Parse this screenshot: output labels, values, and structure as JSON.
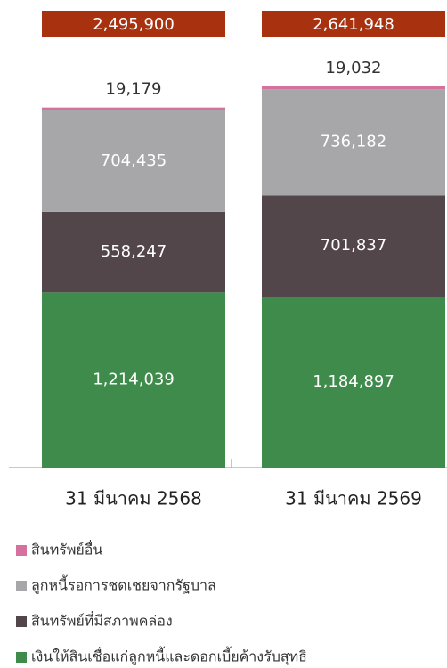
{
  "chart_data": {
    "type": "stacked-bar",
    "categories": [
      "31 มีนาคม 2568",
      "31 มีนาคม 2569"
    ],
    "totals": [
      2495900,
      2641948
    ],
    "total_labels": [
      "2,495,900",
      "2,641,948"
    ],
    "total_color": "#a8320f",
    "series": [
      {
        "name": "สินทรัพย์อื่น",
        "color": "#d4719c",
        "values": [
          19179,
          19032
        ],
        "value_labels": [
          "19,179",
          "19,032"
        ]
      },
      {
        "name": "ลูกหนี้รอการชดเชยจากรัฐบาล",
        "color": "#a7a7a9",
        "values": [
          704435,
          736182
        ],
        "value_labels": [
          "704,435",
          "736,182"
        ]
      },
      {
        "name": "สินทรัพย์ที่มีสภาพคล่อง",
        "color": "#53464b",
        "values": [
          558247,
          701837
        ],
        "value_labels": [
          "558,247",
          "701,837"
        ]
      },
      {
        "name": "เงินให้สินเชื่อแก่ลูกหนี้และดอกเบี้ยค้างรับสุทธิ",
        "color": "#3e8b4b",
        "values": [
          1214039,
          1184897
        ],
        "value_labels": [
          "1,214,039",
          "1,184,897"
        ]
      }
    ]
  }
}
